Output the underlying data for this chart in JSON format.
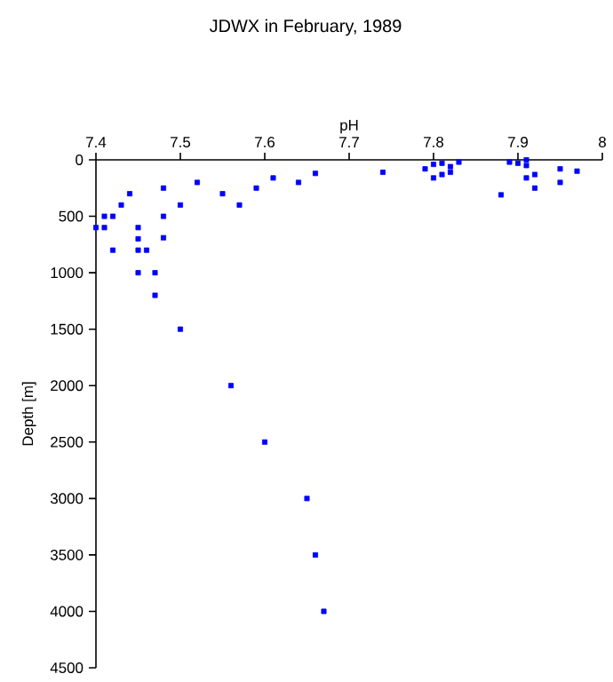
{
  "chart_data": {
    "type": "scatter",
    "title": "JDWX in February, 1989",
    "xlabel": "pH",
    "ylabel": "Depth [m]",
    "x": [
      7.66,
      7.64,
      7.61,
      7.59,
      7.57,
      7.55,
      7.52,
      7.5,
      7.48,
      7.48,
      7.48,
      7.44,
      7.43,
      7.41,
      7.42,
      7.4,
      7.41,
      7.42,
      7.45,
      7.45,
      7.45,
      7.46,
      7.45,
      7.47,
      7.47,
      7.5,
      7.56,
      7.6,
      7.65,
      7.66,
      7.67,
      7.74,
      7.79,
      7.8,
      7.81,
      7.82,
      7.83,
      7.8,
      7.81,
      7.82,
      7.88,
      7.89,
      7.9,
      7.91,
      7.91,
      7.91,
      7.92,
      7.92,
      7.95,
      7.95,
      7.97
    ],
    "values": [
      120,
      200,
      160,
      250,
      400,
      300,
      200,
      400,
      250,
      500,
      690,
      300,
      400,
      500,
      500,
      600,
      600,
      800,
      600,
      700,
      800,
      800,
      1000,
      1000,
      1200,
      1500,
      2000,
      2500,
      3000,
      3500,
      4000,
      110,
      80,
      40,
      30,
      60,
      20,
      160,
      130,
      110,
      310,
      20,
      30,
      0,
      50,
      160,
      130,
      250,
      80,
      200,
      100
    ],
    "color": "#0000ff",
    "marker": "square",
    "xlim": [
      7.4,
      8
    ],
    "xticks": [
      7.4,
      7.5,
      7.6,
      7.7,
      7.8,
      7.9,
      8
    ],
    "ylim": [
      4500,
      0
    ],
    "yticks": [
      0,
      500,
      1000,
      1500,
      2000,
      2500,
      3000,
      3500,
      4000,
      4500
    ],
    "grid": false
  }
}
